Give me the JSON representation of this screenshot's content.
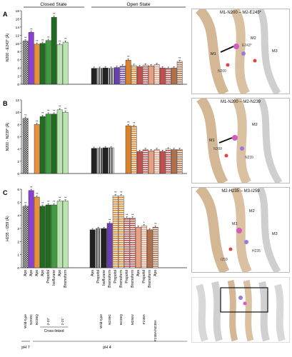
{
  "header": {
    "closed_state": "Closed State",
    "open_state": "Open State"
  },
  "chart_data": [
    {
      "type": "bar",
      "panel": "A",
      "ylabel": "N200 - E243* (Å)",
      "ylim": [
        0,
        18
      ],
      "yticks": [
        0,
        2,
        4,
        6,
        8,
        10,
        12,
        14,
        16,
        18
      ],
      "values": [
        10.6,
        12.7,
        9.8,
        10.0,
        10.7,
        16.4,
        9.7,
        10.3,
        3.9,
        3.9,
        4.0,
        3.9,
        4.1,
        4.5,
        5.9,
        4.6,
        4.3,
        4.7,
        4.5,
        4.8,
        4.0,
        3.9,
        4.0,
        5.6
      ],
      "sig": [
        "**",
        "**",
        "**",
        "**",
        "**",
        "**",
        "**",
        "**",
        "",
        "",
        "",
        "",
        "",
        "",
        "**",
        "",
        "",
        "",
        "",
        "",
        "",
        "",
        "",
        "**"
      ]
    },
    {
      "type": "bar",
      "panel": "B",
      "ylabel": "N200 - N239* (Å)",
      "ylim": [
        0,
        12
      ],
      "yticks": [
        0,
        2,
        4,
        6,
        8,
        10,
        12
      ],
      "values": [
        9.0,
        null,
        8.0,
        9.3,
        9.7,
        9.7,
        10.4,
        10.0,
        4.1,
        4.1,
        4.2,
        4.2,
        null,
        null,
        7.8,
        7.7,
        3.6,
        3.9,
        3.7,
        3.9,
        3.6,
        4.0,
        3.9,
        3.9
      ],
      "sig": [
        "**",
        "",
        "**",
        "**",
        "**",
        "**",
        "**",
        "**",
        "",
        "",
        "",
        "",
        "",
        "",
        "**",
        "**",
        "",
        "",
        "",
        "",
        "",
        "",
        "",
        ""
      ]
    },
    {
      "type": "bar",
      "panel": "C",
      "ylabel": "H235 - I259 (Å)",
      "ylim": [
        0,
        6
      ],
      "yticks": [
        0,
        1,
        2,
        3,
        4,
        5,
        6
      ],
      "values": [
        4.7,
        5.9,
        5.4,
        4.7,
        4.8,
        4.8,
        5.1,
        5.1,
        2.9,
        3.0,
        3.0,
        3.4,
        5.5,
        5.5,
        3.8,
        3.8,
        3.1,
        3.2,
        2.9,
        3.1
      ],
      "sig": [
        "**",
        "**",
        "**",
        "**",
        "**",
        "**",
        "**",
        "**",
        "",
        "",
        "",
        "**",
        "**",
        "**",
        "**",
        "**",
        "",
        "*",
        "",
        "**"
      ]
    }
  ],
  "conditions": [
    "Apo",
    "Apo",
    "Apo",
    "Apo",
    "Propofol",
    "Isoflurane",
    "Apo",
    "Bromoform",
    "Apo",
    "Propofol",
    "Isoflurane",
    "Bromoform",
    "Propofol",
    "Bromoform",
    "Propofol",
    "Bromoform",
    "Apo",
    "Propofol",
    "Bromoform",
    "Apo"
  ],
  "constructs": {
    "wild_type": "Wild-type",
    "n200c": "N200C",
    "h235q": "H235Q",
    "x2_22": "2-22'",
    "x2_21": "2-21'",
    "wild_type_open": "Wild-type",
    "n239c": "N239C",
    "h235q_open": "H235Q",
    "m256v": "M256V",
    "f238a": "F238A",
    "f238a_n239a": "F238A/N239A"
  },
  "groups": {
    "cross_linked": "Cross-linked",
    "ph7": "pH 7",
    "ph4": "pH 4"
  },
  "panels": {
    "a": {
      "letter": "A",
      "title": "M1-N200 – M2-E243*"
    },
    "b": {
      "letter": "B",
      "title": "M1-N200 – M2-N239"
    },
    "c": {
      "letter": "C",
      "title": "M2-H235 – M3-I259"
    }
  },
  "structure_labels": {
    "a": [
      "M1",
      "M2",
      "M3",
      "N200",
      "E243*"
    ],
    "b": [
      "M1",
      "M2",
      "N200",
      "N239"
    ],
    "c": [
      "M2",
      "M1",
      "M3",
      "H235",
      "I259"
    ]
  },
  "colors": {
    "wild_type": "#111111",
    "n200c": "#8c3fd1",
    "h235q": "#e8903a",
    "cross_dark": "#1f6b1f",
    "cross_mid": "#3f9d3f",
    "cross_light": "#b9e6b0",
    "open_black": "#222222",
    "open_purple": "#6a3fb0",
    "open_orange": "#d9822b",
    "open_red": "#c0504d",
    "open_salmon": "#e8a080",
    "open_brown": "#b0704a",
    "helix": "#c9a67a"
  }
}
